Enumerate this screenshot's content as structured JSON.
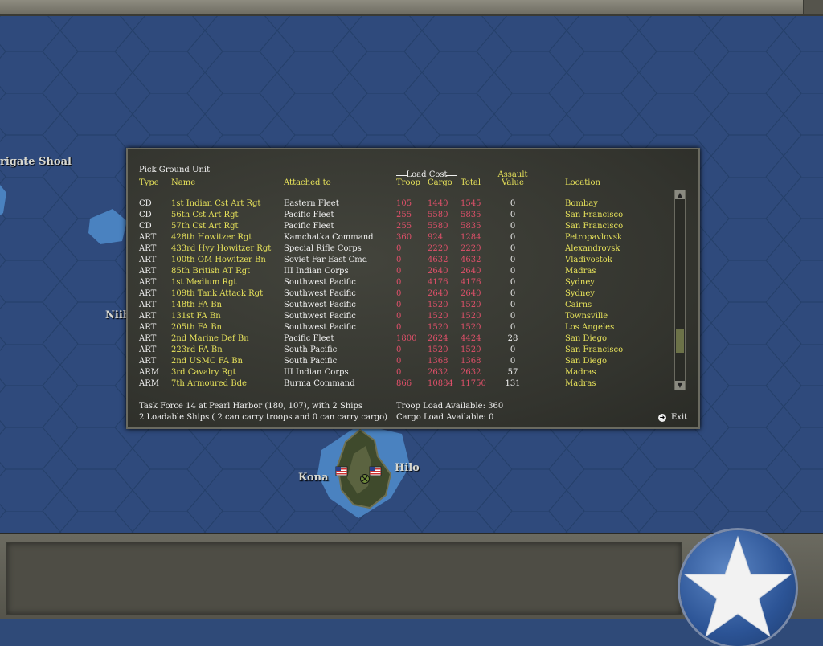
{
  "map": {
    "labels": {
      "frigate_shoal": "rigate Shoal",
      "niihau": "Niih",
      "kona": "Kona",
      "hilo": "Hilo"
    },
    "colors": {
      "ocean": "#2f4a7c",
      "hex_line": "#25406b"
    }
  },
  "dialog": {
    "title": "Pick Ground Unit",
    "columns": {
      "type": "Type",
      "name": "Name",
      "attached": "Attached to",
      "load_cost_group": "Load Cost",
      "troop": "Troop",
      "cargo": "Cargo",
      "total": "Total",
      "assault_line1": "Assault",
      "assault_line2": "Value",
      "location": "Location"
    },
    "rows": [
      {
        "type": "CD",
        "name": "1st Indian Cst Art Rgt",
        "attached": "Eastern Fleet",
        "troop": "105",
        "cargo": "1440",
        "total": "1545",
        "assault": "0",
        "location": "Bombay"
      },
      {
        "type": "CD",
        "name": "56th Cst Art Rgt",
        "attached": "Pacific Fleet",
        "troop": "255",
        "cargo": "5580",
        "total": "5835",
        "assault": "0",
        "location": "San Francisco"
      },
      {
        "type": "CD",
        "name": "57th Cst Art Rgt",
        "attached": "Pacific Fleet",
        "troop": "255",
        "cargo": "5580",
        "total": "5835",
        "assault": "0",
        "location": "San Francisco"
      },
      {
        "type": "ART",
        "name": "428th Howitzer Rgt",
        "attached": "Kamchatka Command",
        "troop": "360",
        "cargo": "924",
        "total": "1284",
        "assault": "0",
        "location": "Petropavlovsk"
      },
      {
        "type": "ART",
        "name": "433rd Hvy Howitzer Rgt",
        "attached": "Special Rifle Corps",
        "troop": "0",
        "cargo": "2220",
        "total": "2220",
        "assault": "0",
        "location": "Alexandrovsk"
      },
      {
        "type": "ART",
        "name": "100th OM Howitzer Bn",
        "attached": "Soviet Far East Cmd",
        "troop": "0",
        "cargo": "4632",
        "total": "4632",
        "assault": "0",
        "location": "Vladivostok"
      },
      {
        "type": "ART",
        "name": "85th British AT Rgt",
        "attached": "III Indian Corps",
        "troop": "0",
        "cargo": "2640",
        "total": "2640",
        "assault": "0",
        "location": "Madras"
      },
      {
        "type": "ART",
        "name": "1st Medium Rgt",
        "attached": "Southwest Pacific",
        "troop": "0",
        "cargo": "4176",
        "total": "4176",
        "assault": "0",
        "location": "Sydney"
      },
      {
        "type": "ART",
        "name": "109th Tank Attack Rgt",
        "attached": "Southwest Pacific",
        "troop": "0",
        "cargo": "2640",
        "total": "2640",
        "assault": "0",
        "location": "Sydney"
      },
      {
        "type": "ART",
        "name": "148th FA Bn",
        "attached": "Southwest Pacific",
        "troop": "0",
        "cargo": "1520",
        "total": "1520",
        "assault": "0",
        "location": "Cairns"
      },
      {
        "type": "ART",
        "name": "131st FA Bn",
        "attached": "Southwest Pacific",
        "troop": "0",
        "cargo": "1520",
        "total": "1520",
        "assault": "0",
        "location": "Townsville"
      },
      {
        "type": "ART",
        "name": "205th FA Bn",
        "attached": "Southwest Pacific",
        "troop": "0",
        "cargo": "1520",
        "total": "1520",
        "assault": "0",
        "location": "Los Angeles"
      },
      {
        "type": "ART",
        "name": "2nd Marine Def Bn",
        "attached": "Pacific Fleet",
        "troop": "1800",
        "cargo": "2624",
        "total": "4424",
        "assault": "28",
        "location": "San Diego"
      },
      {
        "type": "ART",
        "name": "223rd FA Bn",
        "attached": "South Pacific",
        "troop": "0",
        "cargo": "1520",
        "total": "1520",
        "assault": "0",
        "location": "San Francisco"
      },
      {
        "type": "ART",
        "name": "2nd USMC FA Bn",
        "attached": "South Pacific",
        "troop": "0",
        "cargo": "1368",
        "total": "1368",
        "assault": "0",
        "location": "San Diego"
      },
      {
        "type": "ARM",
        "name": "3rd Cavalry Rgt",
        "attached": "III Indian Corps",
        "troop": "0",
        "cargo": "2632",
        "total": "2632",
        "assault": "57",
        "location": "Madras"
      },
      {
        "type": "ARM",
        "name": "7th Armoured Bde",
        "attached": "Burma Command",
        "troop": "866",
        "cargo": "10884",
        "total": "11750",
        "assault": "131",
        "location": "Madras"
      }
    ],
    "footer": {
      "task_force": "Task Force 14 at Pearl Harbor (180, 107), with 2 Ships",
      "loadable": "2 Loadable Ships ( 2 can carry troops and 0 can carry cargo)",
      "troop_load": "Troop Load Available: 360",
      "cargo_load": "Cargo Load Available: 0"
    },
    "exit_label": "Exit",
    "colors": {
      "yellow": "#e7e25a",
      "red": "#e0506a",
      "white": "#f0f0f0"
    }
  },
  "icons": {
    "flag": "us-flag-icon",
    "unit": "unit-counter-icon",
    "emblem": "star-emblem-icon",
    "exit": "exit-arrow-icon"
  }
}
